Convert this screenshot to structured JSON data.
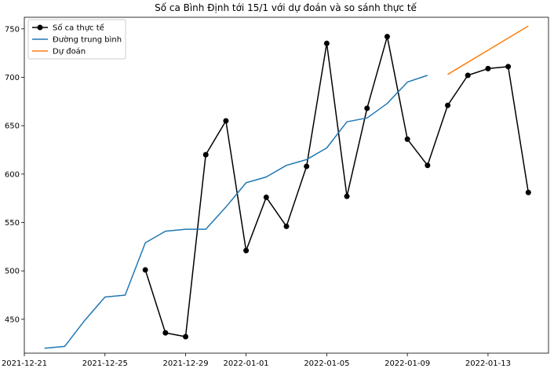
{
  "chart_data": {
    "type": "line",
    "title": "Số ca Bình Định tới 15/1 với dự đoán và so sánh thực tế",
    "xlabel": "",
    "ylabel": "",
    "x_range": [
      "2021-12-21",
      "2022-01-16"
    ],
    "ylim": [
      415,
      762
    ],
    "x_ticks": [
      "2021-12-21",
      "2021-12-25",
      "2021-12-29",
      "2022-01-01",
      "2022-01-05",
      "2022-01-09",
      "2022-01-13"
    ],
    "y_ticks": [
      450,
      500,
      550,
      600,
      650,
      700,
      750
    ],
    "grid": false,
    "legend_position": "top-left",
    "series": [
      {
        "name": "Số ca thực tế",
        "color": "#000000",
        "marker": "circle",
        "points": [
          [
            "2021-12-27",
            501
          ],
          [
            "2021-12-28",
            436
          ],
          [
            "2021-12-29",
            432
          ],
          [
            "2021-12-30",
            620
          ],
          [
            "2021-12-31",
            655
          ],
          [
            "2022-01-01",
            521
          ],
          [
            "2022-01-02",
            576
          ],
          [
            "2022-01-03",
            546
          ],
          [
            "2022-01-04",
            608
          ],
          [
            "2022-01-05",
            735
          ],
          [
            "2022-01-06",
            577
          ],
          [
            "2022-01-07",
            668
          ],
          [
            "2022-01-08",
            742
          ],
          [
            "2022-01-09",
            636
          ],
          [
            "2022-01-10",
            609
          ],
          [
            "2022-01-11",
            671
          ],
          [
            "2022-01-12",
            702
          ],
          [
            "2022-01-13",
            709
          ],
          [
            "2022-01-14",
            711
          ],
          [
            "2022-01-15",
            581
          ]
        ]
      },
      {
        "name": "Đường trung bình",
        "color": "#1f77b4",
        "marker": "none",
        "points": [
          [
            "2021-12-22",
            420
          ],
          [
            "2021-12-23",
            422
          ],
          [
            "2021-12-24",
            449
          ],
          [
            "2021-12-25",
            473
          ],
          [
            "2021-12-26",
            475
          ],
          [
            "2021-12-27",
            529
          ],
          [
            "2021-12-28",
            541
          ],
          [
            "2021-12-29",
            543
          ],
          [
            "2021-12-30",
            543
          ],
          [
            "2021-12-31",
            566
          ],
          [
            "2022-01-01",
            591
          ],
          [
            "2022-01-02",
            597
          ],
          [
            "2022-01-03",
            609
          ],
          [
            "2022-01-04",
            615
          ],
          [
            "2022-01-05",
            627
          ],
          [
            "2022-01-06",
            654
          ],
          [
            "2022-01-07",
            658
          ],
          [
            "2022-01-08",
            673
          ],
          [
            "2022-01-09",
            695
          ],
          [
            "2022-01-10",
            702
          ]
        ]
      },
      {
        "name": "Dự đoán",
        "color": "#ff7f0e",
        "marker": "none",
        "points": [
          [
            "2022-01-11",
            703
          ],
          [
            "2022-01-15",
            753
          ]
        ]
      }
    ]
  }
}
